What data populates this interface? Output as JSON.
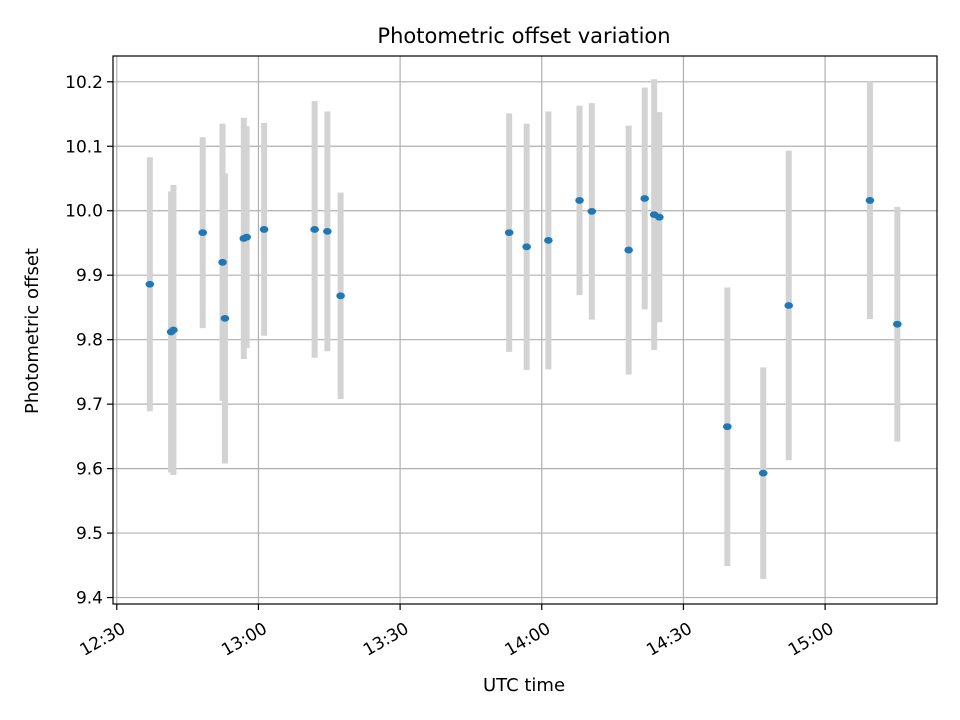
{
  "chart_data": {
    "type": "scatter",
    "title": "Photometric offset variation",
    "xlabel": "UTC time",
    "ylabel": "Photometric offset",
    "x_ticks": [
      "12:30",
      "13:00",
      "13:30",
      "14:00",
      "14:30",
      "15:00"
    ],
    "x_tick_minutes": [
      750,
      780,
      810,
      840,
      870,
      900
    ],
    "xlim_minutes": [
      749.2,
      923.7
    ],
    "y_ticks": [
      "9.4",
      "9.5",
      "9.6",
      "9.7",
      "9.8",
      "9.9",
      "10.0",
      "10.1",
      "10.2"
    ],
    "ylim": [
      9.39,
      10.24
    ],
    "grid": true,
    "colors": {
      "marker": "#1f77b4",
      "errorbar": "#d3d3d3",
      "grid": "#b0b0b0"
    },
    "points": [
      {
        "time": "12:37",
        "t": 757.0,
        "y": 9.886,
        "yerr": 0.197
      },
      {
        "time": "12:41",
        "t": 761.5,
        "y": 9.812,
        "yerr": 0.218
      },
      {
        "time": "12:42",
        "t": 762.0,
        "y": 9.815,
        "yerr": 0.225
      },
      {
        "time": "12:48",
        "t": 768.2,
        "y": 9.966,
        "yerr": 0.148
      },
      {
        "time": "12:52",
        "t": 772.4,
        "y": 9.92,
        "yerr": 0.215
      },
      {
        "time": "12:53",
        "t": 772.9,
        "y": 9.833,
        "yerr": 0.225
      },
      {
        "time": "12:57",
        "t": 776.9,
        "y": 9.957,
        "yerr": 0.187
      },
      {
        "time": "12:57",
        "t": 777.5,
        "y": 9.959,
        "yerr": 0.172
      },
      {
        "time": "13:01",
        "t": 781.2,
        "y": 9.971,
        "yerr": 0.165
      },
      {
        "time": "13:12",
        "t": 791.9,
        "y": 9.971,
        "yerr": 0.199
      },
      {
        "time": "13:15",
        "t": 794.6,
        "y": 9.968,
        "yerr": 0.186
      },
      {
        "time": "13:17",
        "t": 797.4,
        "y": 9.868,
        "yerr": 0.16
      },
      {
        "time": "13:53",
        "t": 833.1,
        "y": 9.966,
        "yerr": 0.185
      },
      {
        "time": "13:56",
        "t": 836.8,
        "y": 9.944,
        "yerr": 0.191
      },
      {
        "time": "14:01",
        "t": 841.4,
        "y": 9.954,
        "yerr": 0.2
      },
      {
        "time": "14:08",
        "t": 848.0,
        "y": 10.016,
        "yerr": 0.147
      },
      {
        "time": "14:10",
        "t": 850.6,
        "y": 9.999,
        "yerr": 0.168
      },
      {
        "time": "14:18",
        "t": 858.4,
        "y": 9.939,
        "yerr": 0.193
      },
      {
        "time": "14:21",
        "t": 861.8,
        "y": 10.019,
        "yerr": 0.172
      },
      {
        "time": "14:23",
        "t": 863.8,
        "y": 9.994,
        "yerr": 0.21
      },
      {
        "time": "14:24",
        "t": 864.9,
        "y": 9.99,
        "yerr": 0.163
      },
      {
        "time": "14:39",
        "t": 879.3,
        "y": 9.665,
        "yerr": 0.216
      },
      {
        "time": "14:47",
        "t": 886.9,
        "y": 9.593,
        "yerr": 0.164
      },
      {
        "time": "14:52",
        "t": 892.3,
        "y": 9.853,
        "yerr": 0.24
      },
      {
        "time": "15:09",
        "t": 909.5,
        "y": 10.016,
        "yerr": 0.184
      },
      {
        "time": "15:15",
        "t": 915.3,
        "y": 9.824,
        "yerr": 0.182
      }
    ]
  }
}
